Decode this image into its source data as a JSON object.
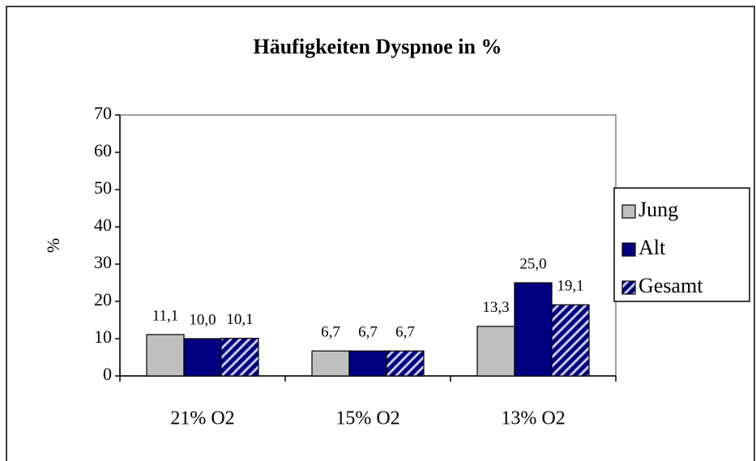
{
  "chart_data": {
    "type": "bar",
    "title": "Häufigkeiten Dyspnoe in %",
    "y_label": "%",
    "categories": [
      "21% O2",
      "15% O2",
      "13% O2"
    ],
    "series": [
      {
        "name": "Jung",
        "color": "#c0c0c0",
        "values": [
          11.1,
          6.7,
          13.3
        ],
        "value_labels": [
          "11,1",
          "6,7",
          "13,3"
        ]
      },
      {
        "name": "Alt",
        "color": "#000080",
        "values": [
          10.0,
          6.7,
          25.0
        ],
        "value_labels": [
          "10,0",
          "6,7",
          "25,0"
        ]
      },
      {
        "name": "Gesamt",
        "color": "#000080",
        "pattern": "diagonal",
        "values": [
          10.1,
          6.7,
          19.1
        ],
        "value_labels": [
          "10,1",
          "6,7",
          "19,1"
        ]
      }
    ],
    "ylim": [
      0,
      70
    ],
    "yticks": [
      0,
      10,
      20,
      30,
      40,
      50,
      60,
      70
    ],
    "grid": false,
    "legend": "right"
  }
}
